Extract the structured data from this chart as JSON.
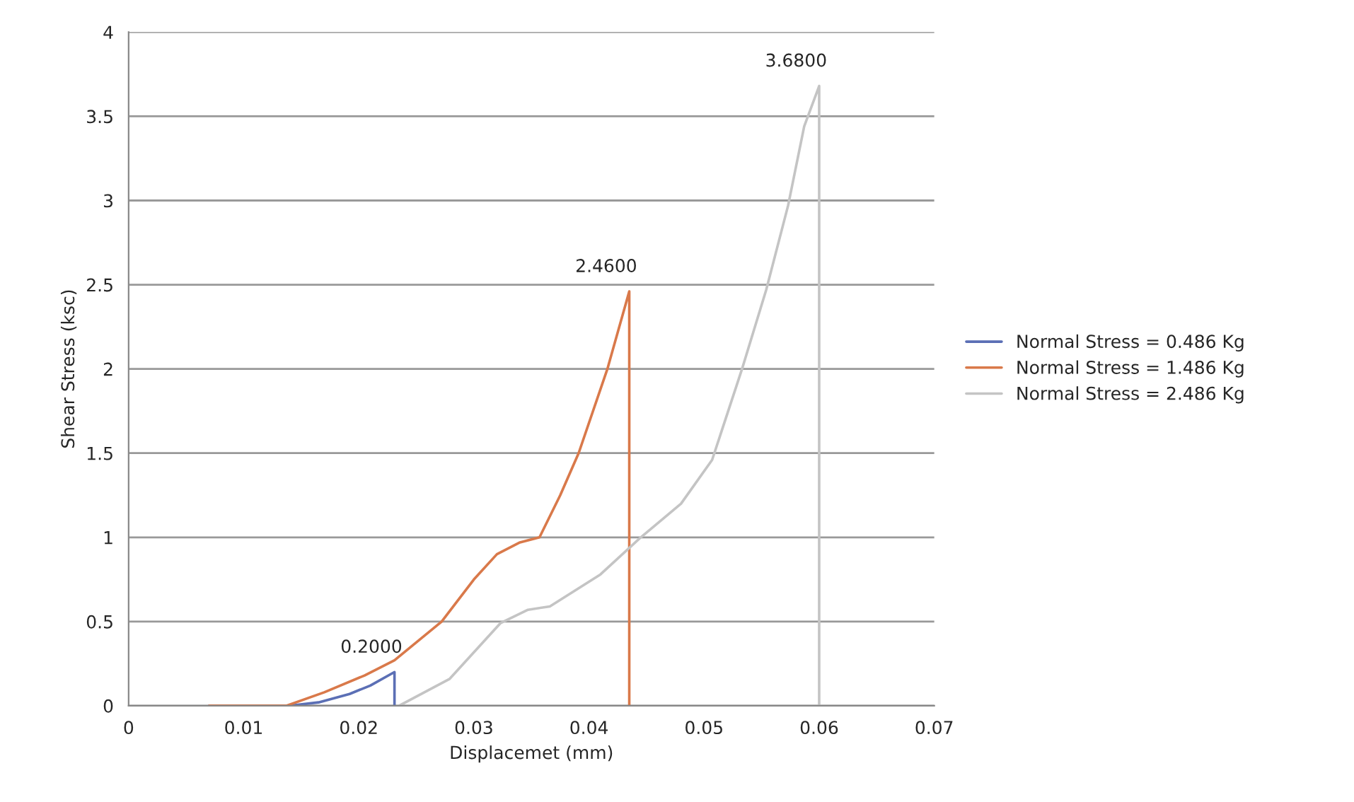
{
  "chart_data": {
    "type": "line",
    "xlabel": "Displacemet (mm)",
    "ylabel": "Shear Stress (ksc)",
    "series": [
      {
        "name": "Normal Stress = 0.486 Kg",
        "color": "#5b6fb5",
        "x": [
          0.007,
          0.0139,
          0.0165,
          0.0192,
          0.021,
          0.0231,
          0.0231
        ],
        "values": [
          0,
          0,
          0.02,
          0.07,
          0.12,
          0.2,
          0
        ]
      },
      {
        "name": "Normal Stress = 1.486 Kg",
        "color": "#d9794a",
        "x": [
          0.007,
          0.0137,
          0.017,
          0.0205,
          0.0231,
          0.0272,
          0.03,
          0.032,
          0.034,
          0.0357,
          0.0375,
          0.0391,
          0.0416,
          0.0435,
          0.0435
        ],
        "values": [
          0,
          0,
          0.08,
          0.18,
          0.27,
          0.5,
          0.75,
          0.9,
          0.97,
          1.0,
          1.25,
          1.5,
          2.0,
          2.46,
          0
        ]
      },
      {
        "name": "Normal Stress = 2.486 Kg",
        "color": "#c4c4c4",
        "x": [
          0.0235,
          0.0279,
          0.0323,
          0.0347,
          0.0366,
          0.041,
          0.0445,
          0.048,
          0.0507,
          0.0533,
          0.0554,
          0.0573,
          0.0587,
          0.06,
          0.06
        ],
        "values": [
          0,
          0.16,
          0.49,
          0.57,
          0.59,
          0.78,
          1.0,
          1.2,
          1.46,
          2.0,
          2.47,
          2.97,
          3.44,
          3.68,
          0
        ]
      }
    ],
    "xlim": [
      0,
      0.07
    ],
    "xticks": [
      0,
      0.01,
      0.02,
      0.03,
      0.04,
      0.05,
      0.06,
      0.07
    ],
    "ylim": [
      0,
      4
    ],
    "yticks": [
      0,
      0.5,
      1,
      1.5,
      2,
      2.5,
      3,
      3.5,
      4
    ],
    "grid": "y",
    "legend": "right",
    "marker": "none",
    "line_style": "solid",
    "annotations": [
      {
        "text": "0.2000",
        "x": 0.0231,
        "y": 0.2
      },
      {
        "text": "2.4600",
        "x": 0.0435,
        "y": 2.46
      },
      {
        "text": "3.6800",
        "x": 0.06,
        "y": 3.68
      }
    ]
  }
}
